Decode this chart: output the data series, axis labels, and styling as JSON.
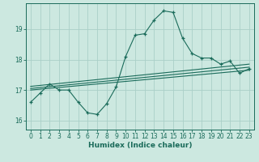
{
  "xlabel": "Humidex (Indice chaleur)",
  "background_color": "#cce8e0",
  "grid_color": "#aacfc8",
  "line_color": "#1a6b5a",
  "xlim": [
    -0.5,
    23.5
  ],
  "ylim": [
    15.7,
    19.85
  ],
  "yticks": [
    16,
    17,
    18,
    19
  ],
  "xticks": [
    0,
    1,
    2,
    3,
    4,
    5,
    6,
    7,
    8,
    9,
    10,
    11,
    12,
    13,
    14,
    15,
    16,
    17,
    18,
    19,
    20,
    21,
    22,
    23
  ],
  "main_x": [
    0,
    1,
    2,
    3,
    4,
    5,
    6,
    7,
    8,
    9,
    10,
    11,
    12,
    13,
    14,
    15,
    16,
    17,
    18,
    19,
    20,
    21,
    22,
    23
  ],
  "main_y": [
    16.6,
    16.9,
    17.2,
    17.0,
    17.0,
    16.6,
    16.25,
    16.2,
    16.55,
    17.1,
    18.1,
    18.8,
    18.85,
    19.3,
    19.6,
    19.55,
    18.7,
    18.2,
    18.05,
    18.05,
    17.85,
    17.95,
    17.55,
    17.7
  ],
  "ref_lines": [
    {
      "x0": 0,
      "x1": 23,
      "y0": 17.0,
      "y1": 17.65
    },
    {
      "x0": 0,
      "x1": 23,
      "y0": 17.05,
      "y1": 17.75
    },
    {
      "x0": 0,
      "x1": 23,
      "y0": 17.12,
      "y1": 17.85
    }
  ]
}
